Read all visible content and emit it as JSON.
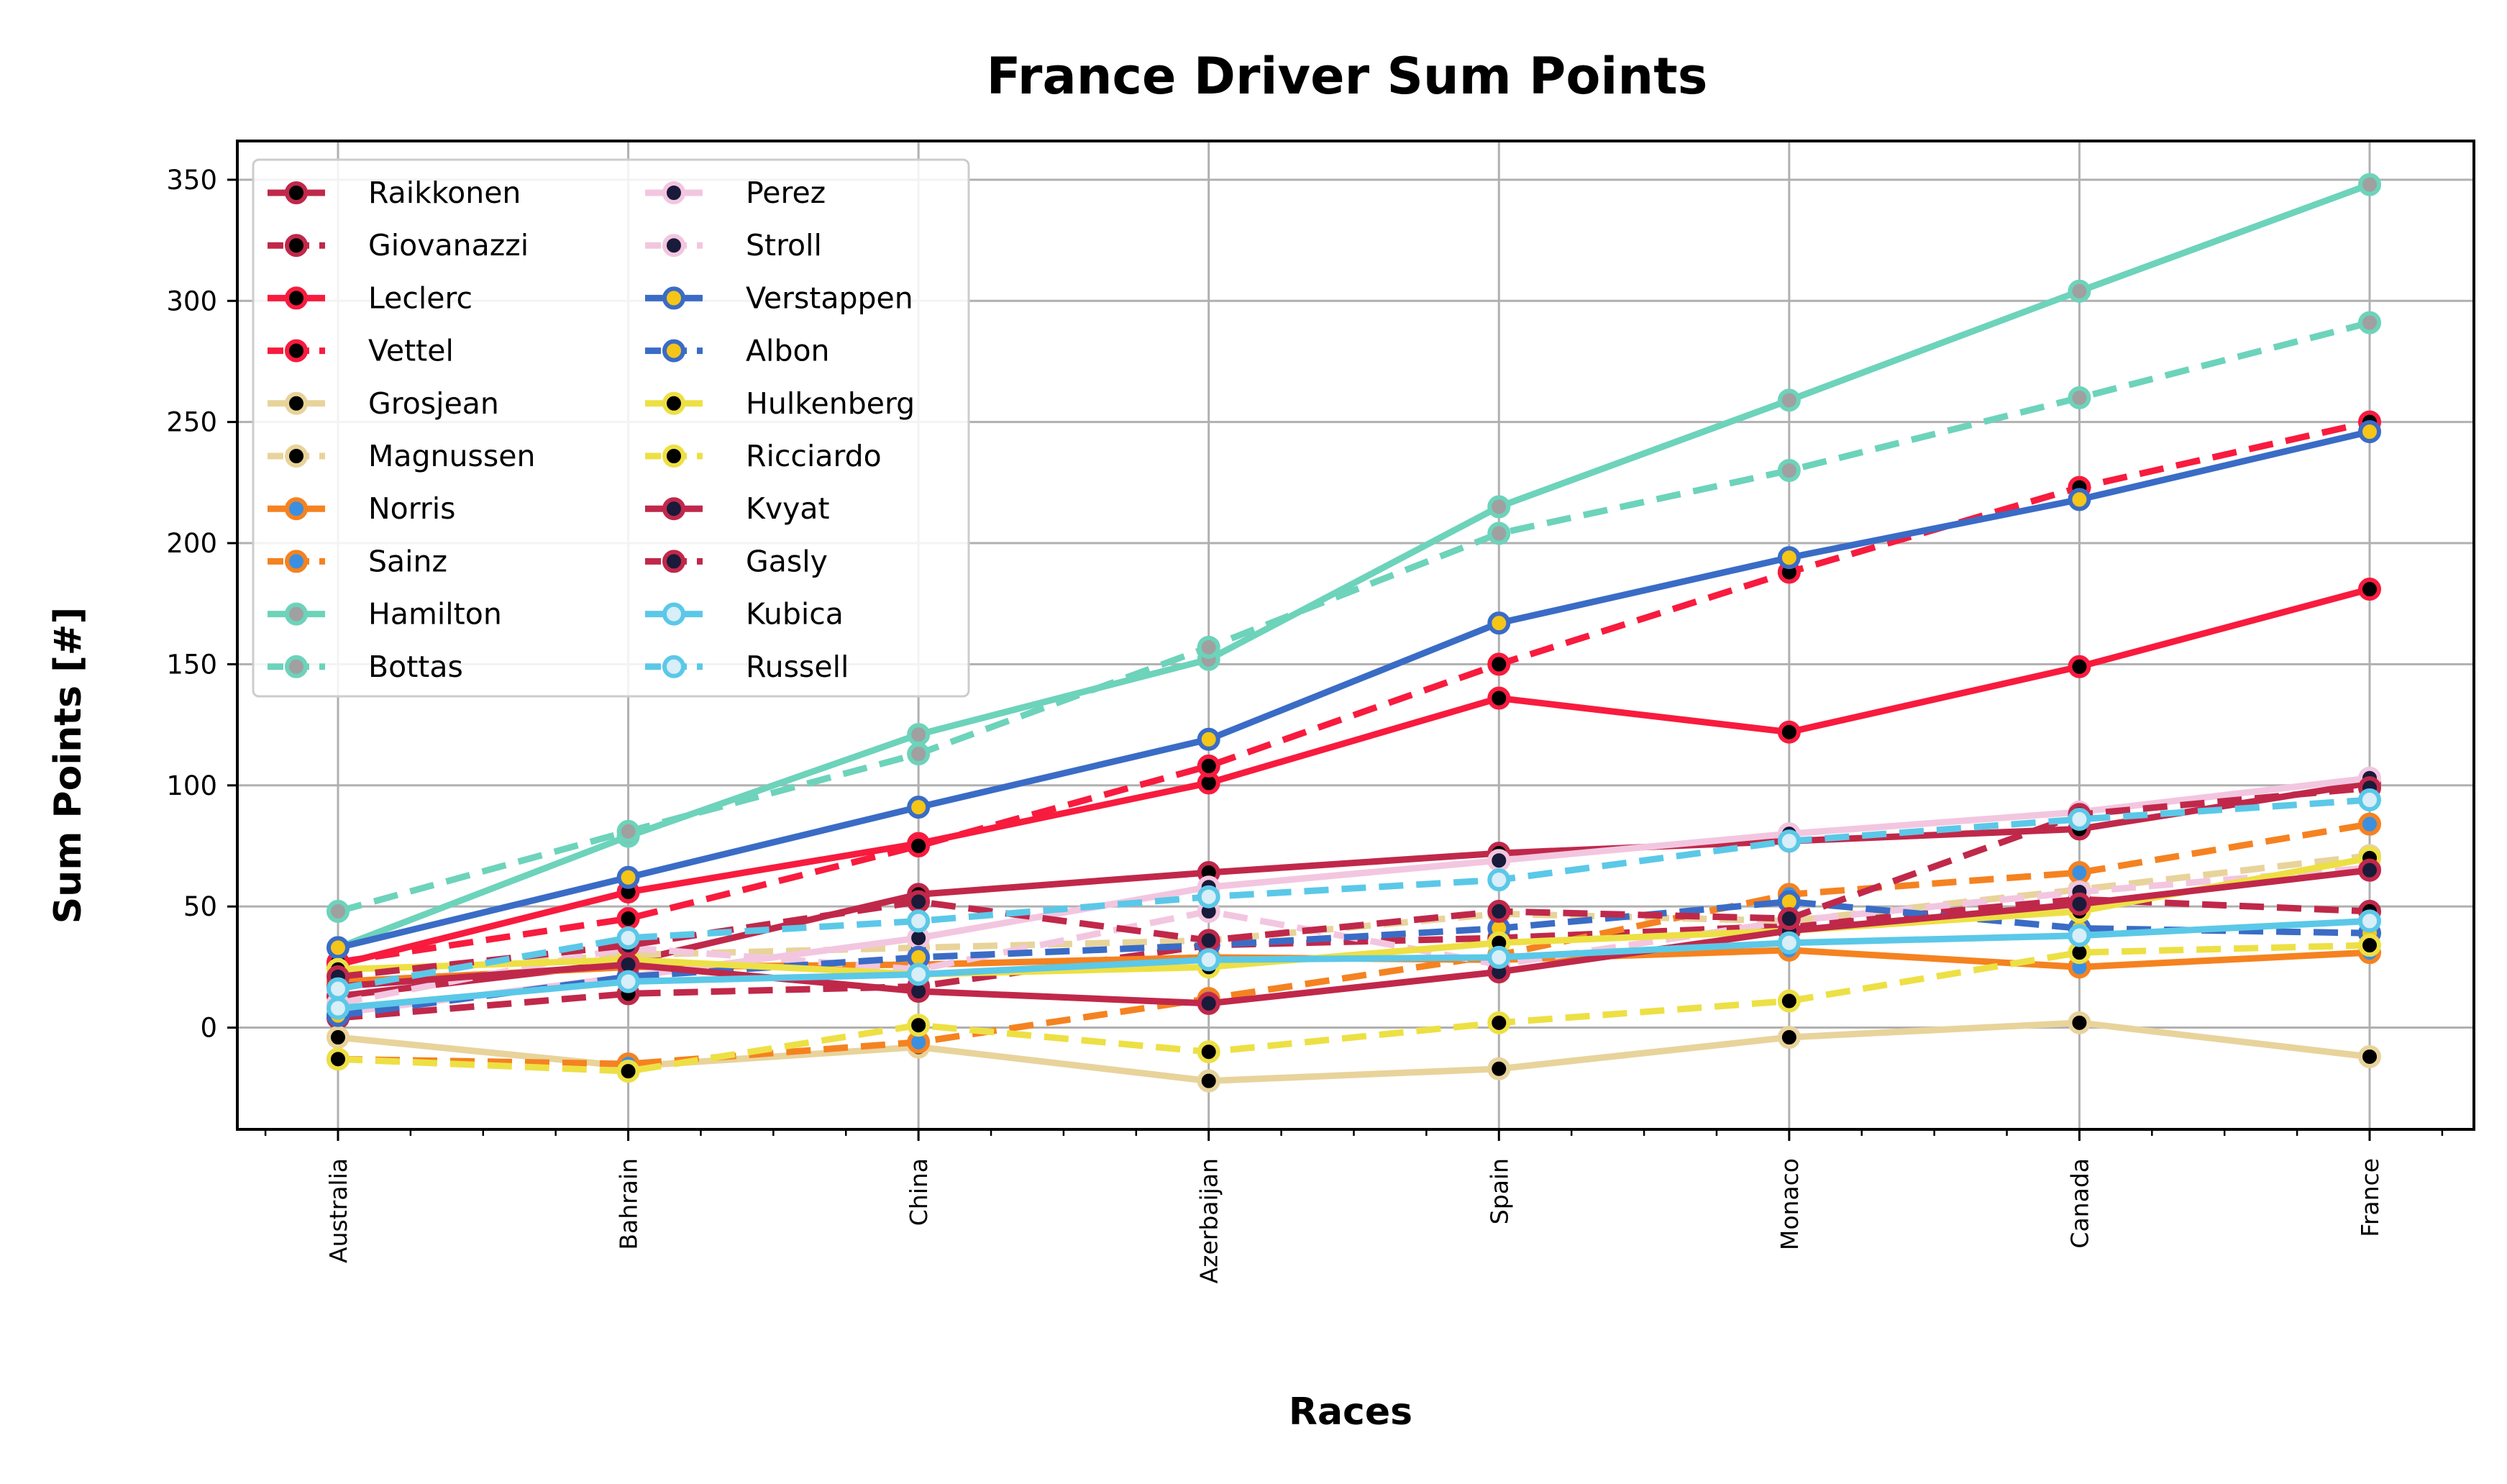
{
  "chart_data": {
    "type": "line",
    "title": "France Driver Sum Points",
    "xlabel": "Races",
    "ylabel": "Sum Points [#]",
    "categories": [
      "Australia",
      "Bahrain",
      "China",
      "Azerbaijan",
      "Spain",
      "Monaco",
      "Canada",
      "France"
    ],
    "ylim": [
      -42,
      366
    ],
    "yticks": [
      0,
      50,
      100,
      150,
      200,
      250,
      300,
      350
    ],
    "grid": true,
    "legend_position": "upper-left",
    "legend_columns": 2,
    "series": [
      {
        "name": "Raikkonen",
        "color": "#c0284a",
        "marker_face": "#000000",
        "dashed": false,
        "values": [
          13,
          27,
          55,
          64,
          72,
          77,
          82,
          101
        ]
      },
      {
        "name": "Giovanazzi",
        "color": "#c0284a",
        "marker_face": "#000000",
        "dashed": true,
        "values": [
          4,
          14,
          17,
          34,
          37,
          42,
          53,
          48
        ]
      },
      {
        "name": "Leclerc",
        "color": "#f81b3e",
        "marker_face": "#000000",
        "dashed": false,
        "values": [
          26,
          56,
          76,
          101,
          136,
          122,
          149,
          181
        ]
      },
      {
        "name": "Vettel",
        "color": "#f81b3e",
        "marker_face": "#000000",
        "dashed": true,
        "values": [
          27,
          45,
          75,
          108,
          150,
          188,
          223,
          250
        ]
      },
      {
        "name": "Grosjean",
        "color": "#e8d39b",
        "marker_face": "#000000",
        "dashed": false,
        "values": [
          -4,
          -16,
          -8,
          -22,
          -17,
          -4,
          2,
          -12
        ]
      },
      {
        "name": "Magnussen",
        "color": "#e8d39b",
        "marker_face": "#000000",
        "dashed": true,
        "values": [
          22,
          30,
          33,
          36,
          47,
          44,
          57,
          71
        ]
      },
      {
        "name": "Norris",
        "color": "#f58220",
        "marker_face": "#3b8fe0",
        "dashed": false,
        "values": [
          19,
          25,
          26,
          29,
          28,
          32,
          25,
          31
        ]
      },
      {
        "name": "Sainz",
        "color": "#f58220",
        "marker_face": "#3b8fe0",
        "dashed": true,
        "values": [
          -13,
          -15,
          -6,
          12,
          30,
          55,
          64,
          84
        ]
      },
      {
        "name": "Hamilton",
        "color": "#6dd3bb",
        "marker_face": "#a0a0a0",
        "dashed": false,
        "values": [
          33,
          79,
          121,
          152,
          215,
          259,
          304,
          348
        ]
      },
      {
        "name": "Bottas",
        "color": "#6dd3bb",
        "marker_face": "#a0a0a0",
        "dashed": true,
        "values": [
          48,
          81,
          113,
          157,
          204,
          230,
          260,
          291
        ]
      },
      {
        "name": "Perez",
        "color": "#f3c6e0",
        "marker_face": "#1a1a3a",
        "dashed": false,
        "values": [
          6,
          21,
          37,
          58,
          69,
          80,
          89,
          103
        ]
      },
      {
        "name": "Stroll",
        "color": "#f3c6e0",
        "marker_face": "#1a1a3a",
        "dashed": true,
        "values": [
          10,
          33,
          24,
          48,
          26,
          44,
          56,
          66
        ]
      },
      {
        "name": "Verstappen",
        "color": "#3a6cc6",
        "marker_face": "#f5c518",
        "dashed": false,
        "values": [
          33,
          62,
          91,
          119,
          167,
          194,
          218,
          246
        ]
      },
      {
        "name": "Albon",
        "color": "#3a6cc6",
        "marker_face": "#f5c518",
        "dashed": true,
        "values": [
          5,
          21,
          29,
          34,
          41,
          52,
          41,
          39
        ]
      },
      {
        "name": "Hulkenberg",
        "color": "#ede044",
        "marker_face": "#000000",
        "dashed": false,
        "values": [
          24,
          28,
          22,
          25,
          35,
          40,
          48,
          70
        ]
      },
      {
        "name": "Ricciardo",
        "color": "#ede044",
        "marker_face": "#000000",
        "dashed": true,
        "values": [
          -13,
          -18,
          1,
          -10,
          2,
          11,
          31,
          34
        ]
      },
      {
        "name": "Kvyat",
        "color": "#c0284a",
        "marker_face": "#1a1a3a",
        "dashed": false,
        "values": [
          17,
          26,
          15,
          10,
          23,
          40,
          51,
          65
        ]
      },
      {
        "name": "Gasly",
        "color": "#c0284a",
        "marker_face": "#1a1a3a",
        "dashed": true,
        "values": [
          21,
          34,
          52,
          36,
          48,
          45,
          88,
          99
        ]
      },
      {
        "name": "Kubica",
        "color": "#5bc8e8",
        "marker_face": "#d8eef8",
        "dashed": false,
        "values": [
          8,
          19,
          22,
          28,
          29,
          35,
          38,
          44
        ]
      },
      {
        "name": "Russell",
        "color": "#5bc8e8",
        "marker_face": "#d8eef8",
        "dashed": true,
        "values": [
          16,
          37,
          44,
          54,
          61,
          77,
          86,
          94
        ]
      }
    ]
  }
}
